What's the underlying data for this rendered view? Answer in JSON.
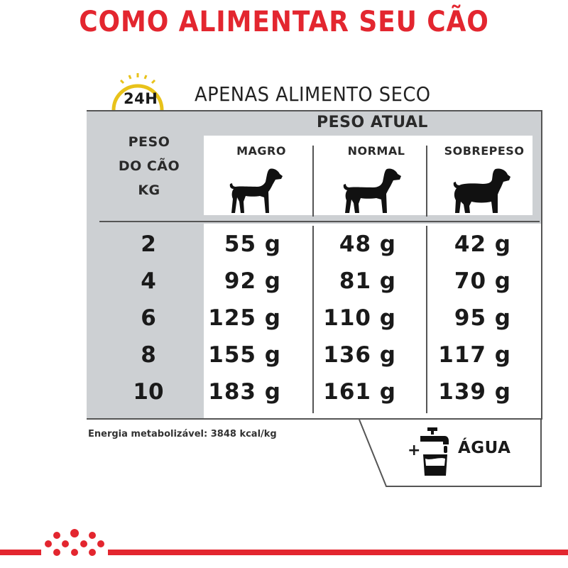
{
  "title": "COMO ALIMENTAR SEU CÃO",
  "clock_label": "24H",
  "subtitle": "APENAS ALIMENTO SECO",
  "table": {
    "group_header": "PESO ATUAL",
    "row_header_lines": [
      "PESO",
      "DO CÃO",
      "KG"
    ],
    "columns": [
      "MAGRO",
      "NORMAL",
      "SOBREPESO"
    ],
    "rows": [
      {
        "kg": "2",
        "values": [
          "55 g",
          "48 g",
          "42 g"
        ]
      },
      {
        "kg": "4",
        "values": [
          "92 g",
          "81 g",
          "70 g"
        ]
      },
      {
        "kg": "6",
        "values": [
          "125 g",
          "110 g",
          "95 g"
        ]
      },
      {
        "kg": "8",
        "values": [
          "155 g",
          "136 g",
          "117 g"
        ]
      },
      {
        "kg": "10",
        "values": [
          "183 g",
          "161 g",
          "139 g"
        ]
      }
    ]
  },
  "footnote": "Energia metabolizável: 3848 kcal/kg",
  "water": {
    "plus": "+",
    "label": "ÁGUA"
  },
  "icons": [
    "clock-icon",
    "thin-dog-icon",
    "normal-dog-icon",
    "overweight-dog-icon",
    "water-tap-icon",
    "royal-canin-crown-logo"
  ],
  "colors": {
    "accent_red": "#e3262f",
    "clock_yellow": "#e8c21a",
    "table_grey": "#cdd0d3"
  }
}
